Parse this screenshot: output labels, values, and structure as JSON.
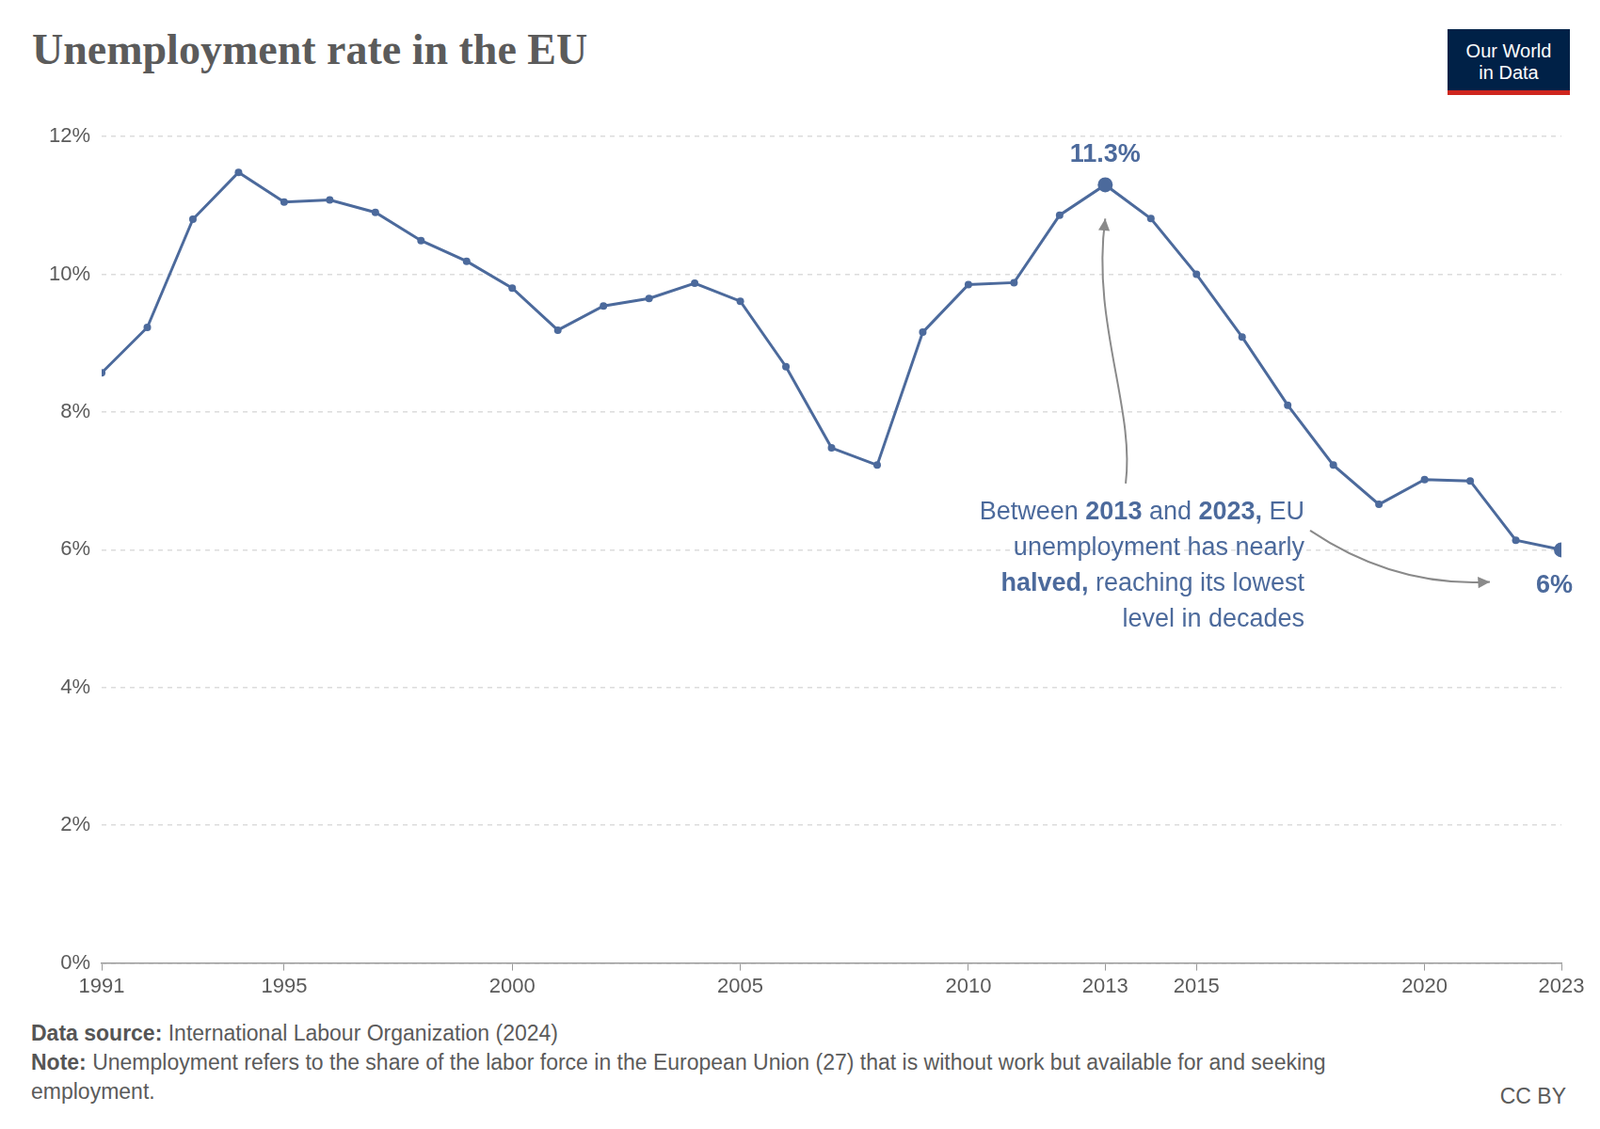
{
  "chart_data": {
    "type": "line",
    "title": "Unemployment rate in the EU",
    "x": [
      1991,
      1992,
      1993,
      1994,
      1995,
      1996,
      1997,
      1998,
      1999,
      2000,
      2001,
      2002,
      2003,
      2004,
      2005,
      2006,
      2007,
      2008,
      2009,
      2010,
      2011,
      2012,
      2013,
      2014,
      2015,
      2016,
      2017,
      2018,
      2019,
      2020,
      2021,
      2022,
      2023
    ],
    "values": [
      8.57,
      9.23,
      10.8,
      11.48,
      11.05,
      11.08,
      10.9,
      10.49,
      10.19,
      9.8,
      9.19,
      9.54,
      9.65,
      9.87,
      9.61,
      8.66,
      7.48,
      7.23,
      9.16,
      9.85,
      9.88,
      10.86,
      11.3,
      10.81,
      10.0,
      9.09,
      8.1,
      7.23,
      6.66,
      7.02,
      7.0,
      6.14,
      6.0
    ],
    "color": "#4c6a9c",
    "marker": "circle",
    "line_style": "solid",
    "xlim": [
      1991,
      2023
    ],
    "xticks": [
      1991,
      1995,
      2000,
      2005,
      2010,
      2013,
      2015,
      2020,
      2023
    ],
    "ylim": [
      0,
      12
    ],
    "yticks": [
      {
        "value": 0,
        "label": "0%"
      },
      {
        "value": 2,
        "label": "2%"
      },
      {
        "value": 4,
        "label": "4%"
      },
      {
        "value": 6,
        "label": "6%"
      },
      {
        "value": 8,
        "label": "8%"
      },
      {
        "value": 10,
        "label": "10%"
      },
      {
        "value": 12,
        "label": "12%"
      }
    ],
    "grid": true,
    "point_labels": [
      {
        "x": 2013,
        "value": 11.3,
        "label": "11.3%"
      },
      {
        "x": 2023,
        "value": 6,
        "label": "6%"
      }
    ],
    "annotation": {
      "text": "Between 2013 and 2023, EU unemployment has nearly halved, reaching its lowest level in decades",
      "bold": [
        "2013",
        "2023",
        "halved"
      ]
    },
    "source_label": "Data source:",
    "source": "International Labour Organization (2024)",
    "note_label": "Note:",
    "note": "Unemployment refers to the share of the labor force in the European Union (27) that is without work but available for and seeking employment.",
    "license": "CC BY",
    "logo": "Our World in Data"
  }
}
